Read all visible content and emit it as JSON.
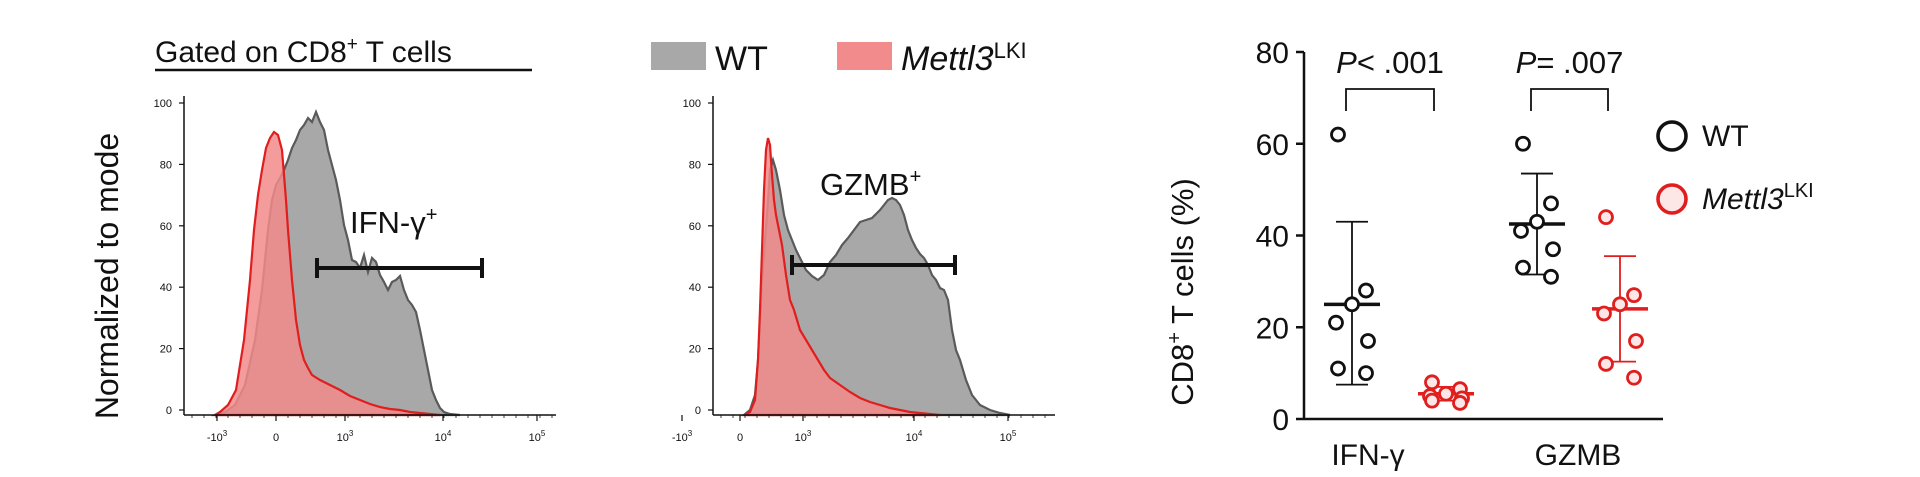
{
  "colors": {
    "wt_fill": "#a8a8a8",
    "wt_line": "#5a5a5a",
    "ki_fill": "#f28b8b",
    "ki_line": "#e01e1e",
    "axis": "#111111"
  },
  "header": {
    "gated_prefix": "Gated on CD8",
    "gated_sup": "+",
    "gated_suffix": " T cells"
  },
  "legend_top": {
    "wt_label": "WT",
    "ki_label": "Mettl3",
    "ki_sup": "LKI"
  },
  "histogram_y_label": "Normalized to mode",
  "histograms": [
    {
      "gate_label": "IFN-γ",
      "gate_sup": "+",
      "y_ticks": [
        "100",
        "80",
        "60",
        "40",
        "20",
        "0"
      ],
      "x_ticks": [
        {
          "base": "-10",
          "exp": "3"
        },
        {
          "base": "0",
          "exp": ""
        },
        {
          "base": "10",
          "exp": "3"
        },
        {
          "base": "10",
          "exp": "4"
        },
        {
          "base": "10",
          "exp": "5"
        }
      ]
    },
    {
      "gate_label": "GZMB",
      "gate_sup": "+",
      "y_ticks": [
        "100",
        "80",
        "60",
        "40",
        "20",
        "0"
      ],
      "x_ticks": [
        {
          "base": "-10",
          "exp": "3"
        },
        {
          "base": "0",
          "exp": ""
        },
        {
          "base": "10",
          "exp": "3"
        },
        {
          "base": "10",
          "exp": "4"
        },
        {
          "base": "10",
          "exp": "5"
        }
      ]
    }
  ],
  "chart_data": {
    "type": "scatter",
    "title": "",
    "ylabel_prefix": "CD8",
    "ylabel_sup": "+",
    "ylabel_suffix": " T cells (%)",
    "ylim": [
      0,
      80
    ],
    "yticks": [
      "0",
      "20",
      "40",
      "60",
      "80"
    ],
    "categories": [
      "IFN-γ",
      "GZMB"
    ],
    "series": [
      {
        "name": "WT",
        "color": "#111111",
        "fill": "#ffffff",
        "groups": [
          {
            "category": "IFN-γ",
            "values": [
              62,
              28,
              25,
              21,
              17,
              11,
              10
            ],
            "mean": 25,
            "sd_low": 7.5,
            "sd_high": 43
          },
          {
            "category": "GZMB",
            "values": [
              60,
              47,
              43,
              41,
              37,
              33,
              31
            ],
            "mean": 42.5,
            "sd_low": 31.5,
            "sd_high": 53.5
          }
        ]
      },
      {
        "name": "Mettl3",
        "name_sup": "LKI",
        "color": "#e01e1e",
        "fill": "#fde6e6",
        "groups": [
          {
            "category": "IFN-γ",
            "values": [
              8,
              6.5,
              5.5,
              5,
              4.5,
              4,
              3.5
            ],
            "mean": 5.5,
            "sd_low": 4,
            "sd_high": 7
          },
          {
            "category": "GZMB",
            "values": [
              44,
              27,
              25,
              23,
              17,
              12,
              9
            ],
            "mean": 24,
            "sd_low": 12.5,
            "sd_high": 35.5
          }
        ]
      }
    ],
    "pvalues": [
      {
        "category": "IFN-γ",
        "p_label": "P",
        "text": "< .001"
      },
      {
        "category": "GZMB",
        "p_label": "P",
        "text": "= .007"
      }
    ],
    "legend": [
      {
        "label": "WT",
        "sup": ""
      },
      {
        "label": "Mettl3",
        "sup": "LKI"
      }
    ]
  }
}
